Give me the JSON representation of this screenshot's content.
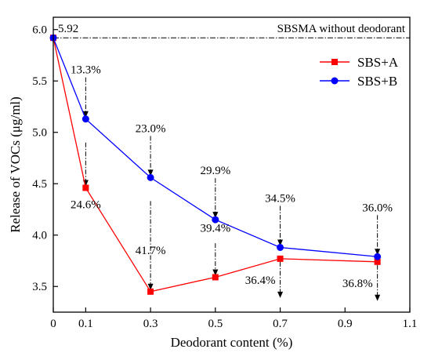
{
  "chart_data": {
    "type": "line",
    "xlabel": "Deodorant content (%)",
    "ylabel": "Release of VOCs (μg/ml)",
    "xlim": [
      0,
      1.1
    ],
    "ylim": [
      3.25,
      6.12
    ],
    "x_ticks": [
      "0",
      "0.1",
      "0.3",
      "0.5",
      "0.7",
      "0.9",
      "1.1"
    ],
    "y_ticks": [
      "3.5",
      "4.0",
      "4.5",
      "5.0",
      "5.5",
      "6.0"
    ],
    "grid": false,
    "legend_position": "top-right",
    "baseline": {
      "label": "SBSMA without deodorant",
      "value": 5.92,
      "value_label": "5.92"
    },
    "series": [
      {
        "name": "SBS+A",
        "color": "#ff0000",
        "marker": "square",
        "x": [
          0,
          0.1,
          0.3,
          0.5,
          0.7,
          1.0
        ],
        "y": [
          5.92,
          4.46,
          3.45,
          3.59,
          3.77,
          3.74
        ],
        "reduction_labels": [
          "",
          "24.6%",
          "41.7%",
          "39.4%",
          "36.4%",
          "36.8%"
        ]
      },
      {
        "name": "SBS+B",
        "color": "#0000ff",
        "marker": "circle",
        "x": [
          0,
          0.1,
          0.3,
          0.5,
          0.7,
          1.0
        ],
        "y": [
          5.92,
          5.13,
          4.56,
          4.15,
          3.88,
          3.79
        ],
        "reduction_labels": [
          "",
          "13.3%",
          "23.0%",
          "29.9%",
          "34.5%",
          "36.0%"
        ]
      }
    ]
  }
}
